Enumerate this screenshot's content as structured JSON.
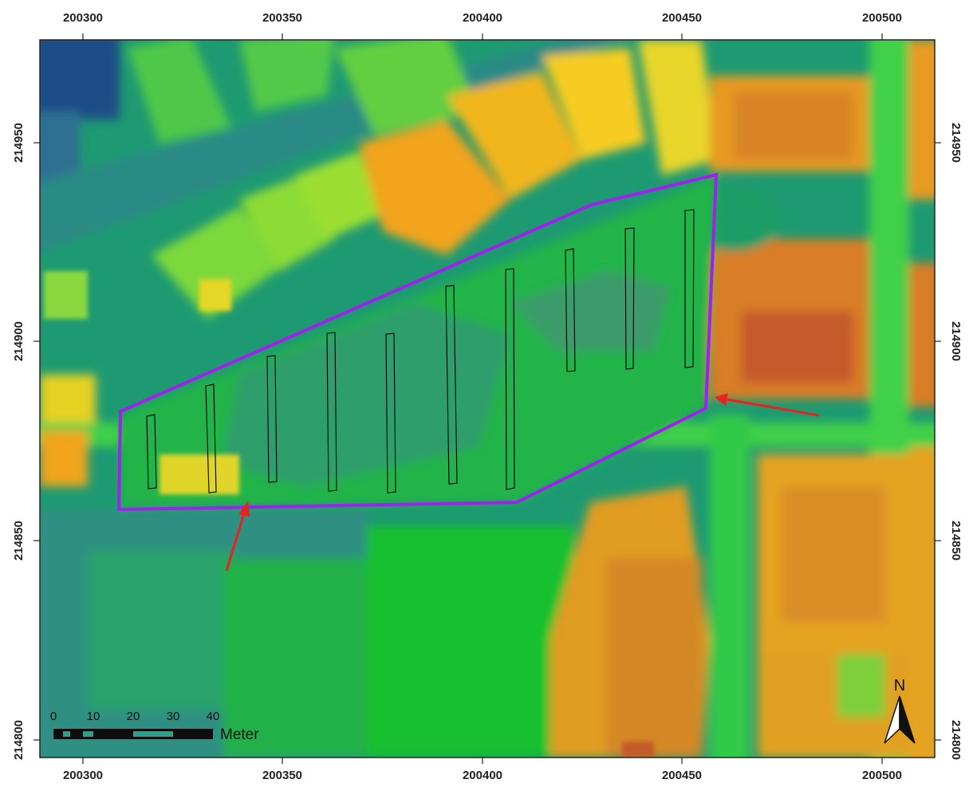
{
  "map": {
    "x_ticks": [
      "200300",
      "200350",
      "200400",
      "200450",
      "200500"
    ],
    "y_ticks": [
      "214950",
      "214900",
      "214850",
      "214800"
    ],
    "colors": {
      "boundary": "#a020f0",
      "arrows": "#e8231f",
      "transect_outline": "#111111",
      "low_elevation": "#1f4f8a",
      "mid_elevation": "#1ed21e",
      "high_elevation": "#f2d21a",
      "peak_elevation": "#b8472a"
    },
    "transect_count": 10,
    "arrow_count": 2,
    "scale_bar": {
      "labels": [
        "0",
        "10",
        "20",
        "30",
        "40"
      ],
      "unit": "Meter"
    },
    "north_arrow": {
      "label": "N"
    }
  }
}
